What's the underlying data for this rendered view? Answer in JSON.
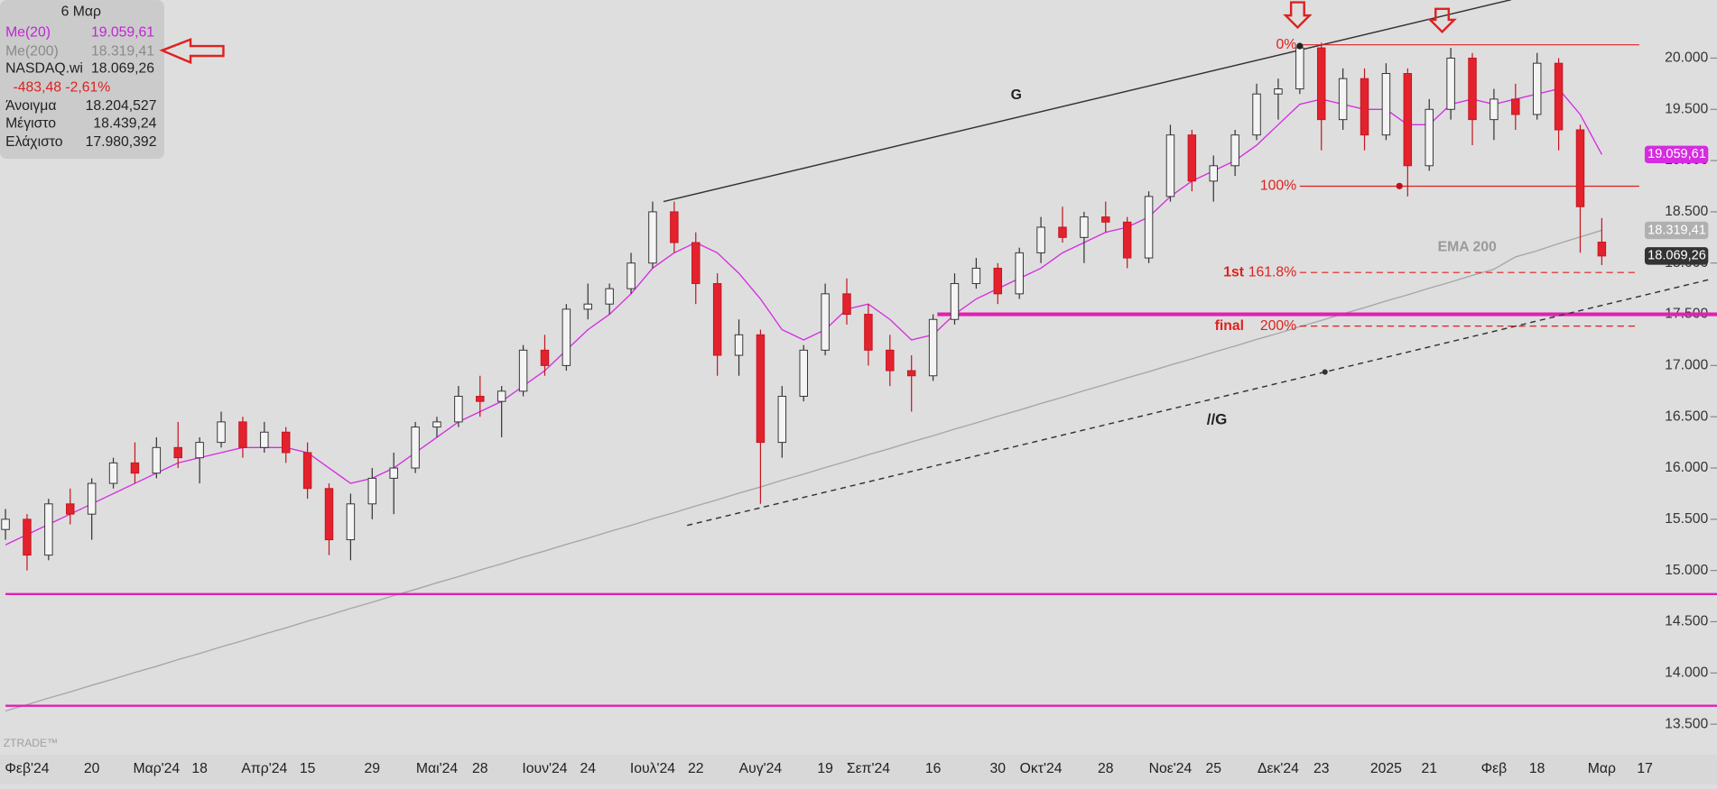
{
  "chart_data": {
    "type": "candlestick",
    "date": "6 Μαρ",
    "ylim": [
      13201,
      20566
    ],
    "yticks": [
      {
        "value": 13500,
        "label": "13.500"
      },
      {
        "value": 14000,
        "label": "14.000"
      },
      {
        "value": 14500,
        "label": "14.500"
      },
      {
        "value": 15000,
        "label": "15.000"
      },
      {
        "value": 15500,
        "label": "15.500"
      },
      {
        "value": 16000,
        "label": "16.000"
      },
      {
        "value": 16500,
        "label": "16.500"
      },
      {
        "value": 17000,
        "label": "17.000"
      },
      {
        "value": 17500,
        "label": "17.500"
      },
      {
        "value": 18000,
        "label": "18.000"
      },
      {
        "value": 18500,
        "label": "18.500"
      },
      {
        "value": 19000,
        "label": "19.000"
      },
      {
        "value": 19500,
        "label": "19.500"
      },
      {
        "value": 20000,
        "label": "20.000"
      }
    ],
    "categories": [
      null,
      "Φεβ'24",
      null,
      null,
      "20",
      null,
      null,
      "Μαρ'24",
      null,
      "18",
      null,
      null,
      "Απρ'24",
      null,
      "15",
      null,
      null,
      "29",
      null,
      null,
      "Μαι'24",
      null,
      "28",
      null,
      null,
      "Ιουν'24",
      null,
      "24",
      null,
      null,
      "Ιουλ'24",
      null,
      "22",
      null,
      null,
      "Αυγ'24",
      null,
      null,
      "19",
      null,
      "Σεπ'24",
      null,
      null,
      "16",
      null,
      null,
      "30",
      null,
      "Οκτ'24",
      null,
      null,
      "28",
      null,
      null,
      "Νοε'24",
      null,
      "25",
      null,
      null,
      "Δεκ'24",
      null,
      "23",
      null,
      null,
      "2025",
      null,
      "21",
      null,
      null,
      "Φεβ",
      null,
      "18",
      null,
      null,
      "Μαρ",
      null,
      "17",
      null
    ],
    "ohlc": [
      [
        15400,
        15600,
        15300,
        15500
      ],
      [
        15500,
        15550,
        15000,
        15150
      ],
      [
        15150,
        15700,
        15100,
        15650
      ],
      [
        15650,
        15800,
        15450,
        15550
      ],
      [
        15550,
        15900,
        15300,
        15850
      ],
      [
        15850,
        16100,
        15800,
        16050
      ],
      [
        16050,
        16250,
        15850,
        15950
      ],
      [
        15950,
        16300,
        15900,
        16200
      ],
      [
        16200,
        16450,
        16000,
        16100
      ],
      [
        16100,
        16300,
        15850,
        16250
      ],
      [
        16250,
        16550,
        16200,
        16450
      ],
      [
        16450,
        16500,
        16100,
        16200
      ],
      [
        16200,
        16450,
        16150,
        16350
      ],
      [
        16350,
        16400,
        16050,
        16150
      ],
      [
        16150,
        16250,
        15700,
        15800
      ],
      [
        15800,
        15850,
        15150,
        15300
      ],
      [
        15300,
        15750,
        15100,
        15650
      ],
      [
        15650,
        16000,
        15500,
        15900
      ],
      [
        15900,
        16150,
        15550,
        16000
      ],
      [
        16000,
        16450,
        15950,
        16400
      ],
      [
        16400,
        16500,
        16300,
        16450
      ],
      [
        16450,
        16800,
        16400,
        16700
      ],
      [
        16700,
        16900,
        16500,
        16650
      ],
      [
        16650,
        16800,
        16300,
        16750
      ],
      [
        16750,
        17200,
        16700,
        17150
      ],
      [
        17150,
        17300,
        16900,
        17000
      ],
      [
        17000,
        17600,
        16950,
        17550
      ],
      [
        17550,
        17800,
        17450,
        17600
      ],
      [
        17600,
        17800,
        17500,
        17750
      ],
      [
        17750,
        18100,
        17700,
        18000
      ],
      [
        18000,
        18600,
        17950,
        18500
      ],
      [
        18500,
        18600,
        18100,
        18200
      ],
      [
        18200,
        18300,
        17600,
        17800
      ],
      [
        17800,
        17900,
        16900,
        17100
      ],
      [
        17100,
        17450,
        16900,
        17300
      ],
      [
        17300,
        17350,
        15650,
        16250
      ],
      [
        16250,
        16800,
        16100,
        16700
      ],
      [
        16700,
        17200,
        16650,
        17150
      ],
      [
        17150,
        17800,
        17100,
        17700
      ],
      [
        17700,
        17850,
        17400,
        17500
      ],
      [
        17500,
        17600,
        17000,
        17150
      ],
      [
        17150,
        17300,
        16800,
        16950
      ],
      [
        16950,
        17100,
        16550,
        16900
      ],
      [
        16900,
        17500,
        16850,
        17450
      ],
      [
        17450,
        17900,
        17400,
        17800
      ],
      [
        17800,
        18050,
        17750,
        17950
      ],
      [
        17950,
        18000,
        17600,
        17700
      ],
      [
        17700,
        18150,
        17650,
        18100
      ],
      [
        18100,
        18450,
        18000,
        18350
      ],
      [
        18350,
        18550,
        18200,
        18250
      ],
      [
        18250,
        18500,
        18000,
        18450
      ],
      [
        18450,
        18600,
        18300,
        18400
      ],
      [
        18400,
        18450,
        17950,
        18050
      ],
      [
        18050,
        18700,
        18000,
        18650
      ],
      [
        18650,
        19350,
        18600,
        19250
      ],
      [
        19250,
        19300,
        18700,
        18800
      ],
      [
        18800,
        19050,
        18600,
        18950
      ],
      [
        18950,
        19300,
        18850,
        19250
      ],
      [
        19250,
        19750,
        19200,
        19650
      ],
      [
        19650,
        19800,
        19400,
        19700
      ],
      [
        19700,
        20150,
        19650,
        20100
      ],
      [
        20100,
        20150,
        19100,
        19400
      ],
      [
        19400,
        19900,
        19300,
        19800
      ],
      [
        19800,
        19900,
        19100,
        19250
      ],
      [
        19250,
        19950,
        19200,
        19850
      ],
      [
        19850,
        19900,
        18650,
        18950
      ],
      [
        18950,
        19600,
        18900,
        19500
      ],
      [
        19500,
        20100,
        19400,
        20000
      ],
      [
        20000,
        20050,
        19150,
        19400
      ],
      [
        19400,
        19700,
        19200,
        19600
      ],
      [
        19600,
        19750,
        19300,
        19450
      ],
      [
        19450,
        20050,
        19400,
        19950
      ],
      [
        19950,
        20000,
        19100,
        19300
      ],
      [
        19300,
        19350,
        18100,
        18550
      ],
      [
        18204.527,
        18439.24,
        17980.392,
        18069.26
      ],
      null,
      null,
      null
    ],
    "series": [
      {
        "name": "Me(20)",
        "color": "#d52ce0",
        "last_label": "19.059,61",
        "values": [
          15250,
          15350,
          15450,
          15550,
          15650,
          15750,
          15850,
          15950,
          16050,
          16100,
          16150,
          16200,
          16200,
          16200,
          16150,
          16000,
          15850,
          15900,
          16000,
          16150,
          16300,
          16450,
          16550,
          16650,
          16800,
          16950,
          17150,
          17350,
          17500,
          17700,
          17950,
          18100,
          18200,
          18100,
          17900,
          17650,
          17350,
          17250,
          17350,
          17550,
          17600,
          17450,
          17250,
          17300,
          17500,
          17650,
          17750,
          17850,
          17950,
          18100,
          18200,
          18300,
          18350,
          18450,
          18650,
          18800,
          18900,
          19000,
          19150,
          19350,
          19550,
          19600,
          19550,
          19500,
          19500,
          19350,
          19350,
          19550,
          19600,
          19550,
          19600,
          19650,
          19700,
          19450,
          19059.61,
          null,
          null,
          null
        ]
      },
      {
        "name": "Me(200)",
        "color": "#a6a6a6",
        "last_label": "18.319,41",
        "values": [
          13630,
          13690,
          13755,
          13815,
          13880,
          13940,
          14005,
          14065,
          14130,
          14190,
          14255,
          14315,
          14380,
          14440,
          14505,
          14565,
          14630,
          14690,
          14755,
          14815,
          14880,
          14940,
          15005,
          15065,
          15130,
          15190,
          15255,
          15315,
          15380,
          15440,
          15505,
          15565,
          15630,
          15690,
          15755,
          15815,
          15880,
          15940,
          16005,
          16065,
          16130,
          16190,
          16255,
          16315,
          16380,
          16440,
          16505,
          16565,
          16630,
          16690,
          16755,
          16815,
          16880,
          16940,
          17005,
          17065,
          17130,
          17190,
          17255,
          17315,
          17380,
          17440,
          17505,
          17565,
          17630,
          17690,
          17755,
          17815,
          17880,
          17940,
          18060,
          18120,
          18190,
          18255,
          18319.41,
          null,
          null,
          null
        ]
      }
    ],
    "quote": {
      "name": "NASDAQ.wi",
      "value": "18.069,26",
      "change": "-483,48 -2,61%"
    },
    "stats": [
      {
        "name": "Άνοιγμα",
        "value": "18.204,527"
      },
      {
        "name": "Μέγιστο",
        "value": "18.439,24"
      },
      {
        "name": "Ελάχιστο",
        "value": "17.980,392"
      }
    ],
    "hlines": [
      {
        "value": 17500,
        "start": 43.2,
        "width": 3.5
      },
      {
        "value": 14770,
        "start": 0,
        "width": 2
      },
      {
        "value": 13680,
        "start": 0,
        "width": 2
      }
    ],
    "hline_color": "#e020b4",
    "fib": [
      {
        "value": 20130,
        "label": "0%",
        "dashed": false
      },
      {
        "value": 18750,
        "label": "100%",
        "dashed": false
      },
      {
        "value": 17908,
        "label": "161.8%",
        "tag": "1st",
        "dashed": true
      },
      {
        "value": 17385,
        "label": "200%",
        "tag": "final",
        "dashed": true
      }
    ],
    "fib_color": "#e02020",
    "trendlines": [
      {
        "name": "G",
        "x": [
          30.5,
          69.8
        ],
        "y": [
          18600,
          20570
        ],
        "dashed": false
      },
      {
        "name": "//G",
        "x": [
          31.6,
          79
        ],
        "y": [
          15440,
          17840
        ],
        "dashed": true
      }
    ],
    "annotation": "EMA 200",
    "watermark": "ZTRADE™"
  }
}
